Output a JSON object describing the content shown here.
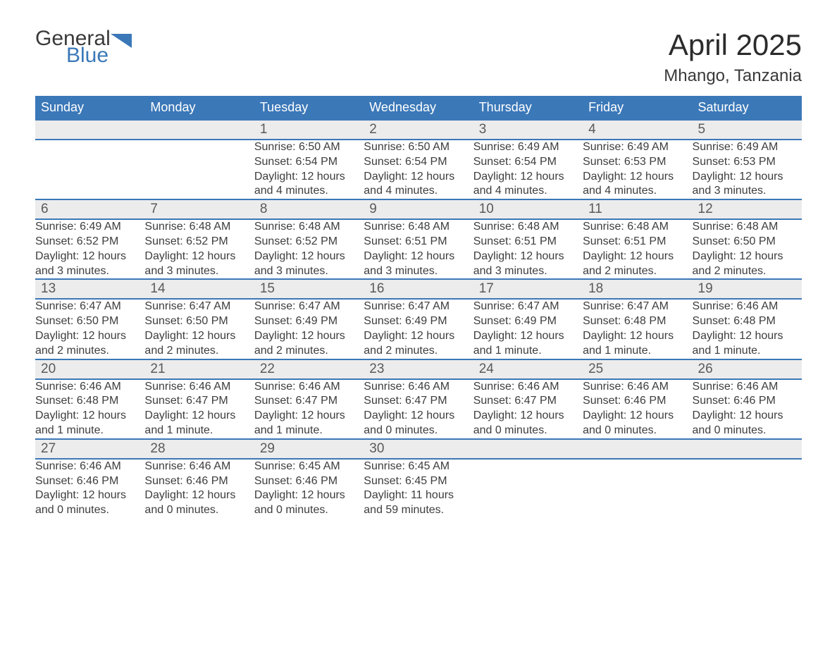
{
  "brand": {
    "part1": "General",
    "part2": "Blue"
  },
  "title": "April 2025",
  "location": "Mhango, Tanzania",
  "colors": {
    "header_bg": "#3b78b8",
    "header_text": "#ffffff",
    "daynum_bg": "#ececec",
    "rule": "#3b78b8",
    "body_text": "#3d3d3d",
    "page_bg": "#ffffff"
  },
  "day_headers": [
    "Sunday",
    "Monday",
    "Tuesday",
    "Wednesday",
    "Thursday",
    "Friday",
    "Saturday"
  ],
  "weeks": [
    [
      null,
      null,
      {
        "n": "1",
        "sr": "6:50 AM",
        "ss": "6:54 PM",
        "dl": "12 hours and 4 minutes."
      },
      {
        "n": "2",
        "sr": "6:50 AM",
        "ss": "6:54 PM",
        "dl": "12 hours and 4 minutes."
      },
      {
        "n": "3",
        "sr": "6:49 AM",
        "ss": "6:54 PM",
        "dl": "12 hours and 4 minutes."
      },
      {
        "n": "4",
        "sr": "6:49 AM",
        "ss": "6:53 PM",
        "dl": "12 hours and 4 minutes."
      },
      {
        "n": "5",
        "sr": "6:49 AM",
        "ss": "6:53 PM",
        "dl": "12 hours and 3 minutes."
      }
    ],
    [
      {
        "n": "6",
        "sr": "6:49 AM",
        "ss": "6:52 PM",
        "dl": "12 hours and 3 minutes."
      },
      {
        "n": "7",
        "sr": "6:48 AM",
        "ss": "6:52 PM",
        "dl": "12 hours and 3 minutes."
      },
      {
        "n": "8",
        "sr": "6:48 AM",
        "ss": "6:52 PM",
        "dl": "12 hours and 3 minutes."
      },
      {
        "n": "9",
        "sr": "6:48 AM",
        "ss": "6:51 PM",
        "dl": "12 hours and 3 minutes."
      },
      {
        "n": "10",
        "sr": "6:48 AM",
        "ss": "6:51 PM",
        "dl": "12 hours and 3 minutes."
      },
      {
        "n": "11",
        "sr": "6:48 AM",
        "ss": "6:51 PM",
        "dl": "12 hours and 2 minutes."
      },
      {
        "n": "12",
        "sr": "6:48 AM",
        "ss": "6:50 PM",
        "dl": "12 hours and 2 minutes."
      }
    ],
    [
      {
        "n": "13",
        "sr": "6:47 AM",
        "ss": "6:50 PM",
        "dl": "12 hours and 2 minutes."
      },
      {
        "n": "14",
        "sr": "6:47 AM",
        "ss": "6:50 PM",
        "dl": "12 hours and 2 minutes."
      },
      {
        "n": "15",
        "sr": "6:47 AM",
        "ss": "6:49 PM",
        "dl": "12 hours and 2 minutes."
      },
      {
        "n": "16",
        "sr": "6:47 AM",
        "ss": "6:49 PM",
        "dl": "12 hours and 2 minutes."
      },
      {
        "n": "17",
        "sr": "6:47 AM",
        "ss": "6:49 PM",
        "dl": "12 hours and 1 minute."
      },
      {
        "n": "18",
        "sr": "6:47 AM",
        "ss": "6:48 PM",
        "dl": "12 hours and 1 minute."
      },
      {
        "n": "19",
        "sr": "6:46 AM",
        "ss": "6:48 PM",
        "dl": "12 hours and 1 minute."
      }
    ],
    [
      {
        "n": "20",
        "sr": "6:46 AM",
        "ss": "6:48 PM",
        "dl": "12 hours and 1 minute."
      },
      {
        "n": "21",
        "sr": "6:46 AM",
        "ss": "6:47 PM",
        "dl": "12 hours and 1 minute."
      },
      {
        "n": "22",
        "sr": "6:46 AM",
        "ss": "6:47 PM",
        "dl": "12 hours and 1 minute."
      },
      {
        "n": "23",
        "sr": "6:46 AM",
        "ss": "6:47 PM",
        "dl": "12 hours and 0 minutes."
      },
      {
        "n": "24",
        "sr": "6:46 AM",
        "ss": "6:47 PM",
        "dl": "12 hours and 0 minutes."
      },
      {
        "n": "25",
        "sr": "6:46 AM",
        "ss": "6:46 PM",
        "dl": "12 hours and 0 minutes."
      },
      {
        "n": "26",
        "sr": "6:46 AM",
        "ss": "6:46 PM",
        "dl": "12 hours and 0 minutes."
      }
    ],
    [
      {
        "n": "27",
        "sr": "6:46 AM",
        "ss": "6:46 PM",
        "dl": "12 hours and 0 minutes."
      },
      {
        "n": "28",
        "sr": "6:46 AM",
        "ss": "6:46 PM",
        "dl": "12 hours and 0 minutes."
      },
      {
        "n": "29",
        "sr": "6:45 AM",
        "ss": "6:46 PM",
        "dl": "12 hours and 0 minutes."
      },
      {
        "n": "30",
        "sr": "6:45 AM",
        "ss": "6:45 PM",
        "dl": "11 hours and 59 minutes."
      },
      null,
      null,
      null
    ]
  ],
  "labels": {
    "sunrise": "Sunrise: ",
    "sunset": "Sunset: ",
    "daylight": "Daylight: "
  }
}
